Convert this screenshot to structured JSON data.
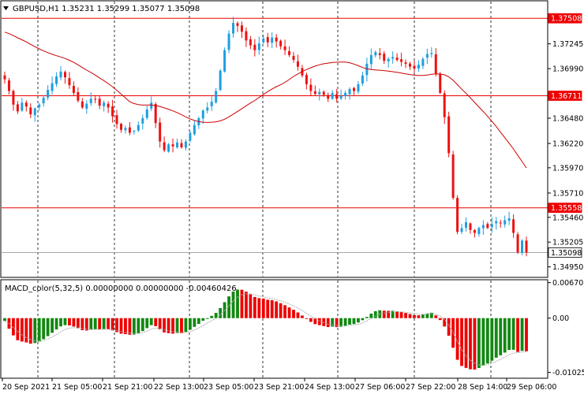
{
  "header": {
    "symbol_line": "GBPUSD,H1  1.35231 1.35299 1.35077 1.35098",
    "macd_line": "MACD_color(5,32,5) 0.00000000 0.00000000 -0.00460426"
  },
  "colors": {
    "bull": "#1e9fe0",
    "bear": "#ee1111",
    "ma": "#cc0000",
    "hline": "#ee0000",
    "grid": "#000000",
    "hist_pos": "#118811",
    "hist_neg": "#ee0000",
    "signal": "#b0b0b0"
  },
  "chart_data": [
    {
      "type": "candlestick",
      "symbol": "GBPUSD",
      "timeframe": "H1",
      "ylim": [
        1.3485,
        1.3768
      ],
      "y_ticks": [
        "1.37508",
        "1.37245",
        "1.36990",
        "1.36711",
        "1.36480",
        "1.36220",
        "1.35970",
        "1.35710",
        "1.35558",
        "1.35460",
        "1.35205",
        "1.35098",
        "1.34950"
      ],
      "y_tick_values": [
        1.37508,
        1.37245,
        1.3699,
        1.36711,
        1.3648,
        1.3622,
        1.3597,
        1.3571,
        1.35558,
        1.3546,
        1.35205,
        1.35098,
        1.3495
      ],
      "boxed_labels": [
        "1.37508",
        "1.36711",
        "1.35558",
        "1.35098"
      ],
      "horizontal_lines": [
        1.37508,
        1.36711,
        1.35558
      ],
      "current_price": 1.35098,
      "x_ticks": [
        "20 Sep 2021",
        "21 Sep 05:00",
        "21 Sep 21:00",
        "22 Sep 13:00",
        "23 Sep 05:00",
        "23 Sep 21:00",
        "24 Sep 13:00",
        "27 Sep 06:00",
        "27 Sep 22:00",
        "28 Sep 14:00",
        "29 Sep 06:00"
      ],
      "grid": "vertical dashed",
      "closes": [
        1.3688,
        1.3676,
        1.3662,
        1.3655,
        1.3664,
        1.366,
        1.3652,
        1.3658,
        1.3662,
        1.3669,
        1.3677,
        1.3684,
        1.3691,
        1.3696,
        1.369,
        1.3682,
        1.3674,
        1.3666,
        1.3659,
        1.3663,
        1.3668,
        1.3667,
        1.3661,
        1.3664,
        1.3659,
        1.365,
        1.3642,
        1.3636,
        1.3638,
        1.3633,
        1.3635,
        1.3641,
        1.3648,
        1.3657,
        1.3664,
        1.3643,
        1.3624,
        1.3615,
        1.3621,
        1.3619,
        1.3623,
        1.3618,
        1.3624,
        1.3633,
        1.3641,
        1.3648,
        1.3656,
        1.3659,
        1.3665,
        1.3676,
        1.3697,
        1.3718,
        1.3735,
        1.3746,
        1.3743,
        1.3737,
        1.3728,
        1.3723,
        1.3718,
        1.3725,
        1.373,
        1.3726,
        1.3731,
        1.3727,
        1.3722,
        1.3718,
        1.3713,
        1.3708,
        1.3701,
        1.3692,
        1.3683,
        1.3676,
        1.3673,
        1.3675,
        1.3672,
        1.3668,
        1.3674,
        1.3668,
        1.3671,
        1.3674,
        1.3678,
        1.3676,
        1.3683,
        1.3692,
        1.3704,
        1.3713,
        1.3716,
        1.3713,
        1.3707,
        1.3709,
        1.3711,
        1.3708,
        1.3706,
        1.3704,
        1.3701,
        1.3699,
        1.3703,
        1.3709,
        1.3714,
        1.3715,
        1.3694,
        1.3674,
        1.3649,
        1.3612,
        1.3566,
        1.3531,
        1.3535,
        1.3541,
        1.3533,
        1.353,
        1.3535,
        1.3538,
        1.3535,
        1.3539,
        1.3542,
        1.354,
        1.3543,
        1.3545,
        1.353,
        1.351,
        1.3522,
        1.351
      ]
    },
    {
      "type": "bar",
      "name": "MACD_color(5,32,5)",
      "ylim": [
        -0.0112,
        0.0071
      ],
      "y_ticks": [
        "0.0067010",
        "0.00",
        "-0.010252"
      ],
      "y_tick_values": [
        0.006701,
        0,
        -0.010252
      ],
      "signal_series": true
    }
  ]
}
